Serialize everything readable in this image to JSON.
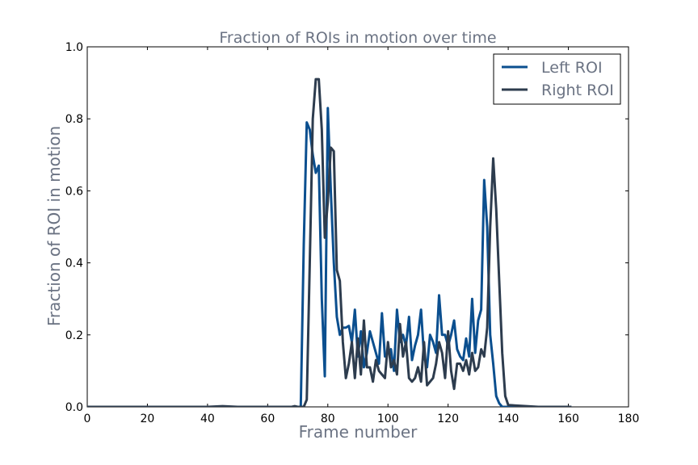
{
  "chart_data": {
    "type": "line",
    "title": "Fraction of ROIs in motion over time",
    "xlabel": "Frame number",
    "ylabel": "Fraction of ROI in motion",
    "xlim": [
      0,
      180
    ],
    "ylim": [
      0.0,
      1.0
    ],
    "xticks": [
      "0",
      "20",
      "40",
      "60",
      "80",
      "100",
      "120",
      "140",
      "160",
      "180"
    ],
    "xtick_values": [
      0,
      20,
      40,
      60,
      80,
      100,
      120,
      140,
      160,
      180
    ],
    "yticks": [
      "0.0",
      "0.2",
      "0.4",
      "0.6",
      "0.8",
      "1.0"
    ],
    "ytick_values": [
      0.0,
      0.2,
      0.4,
      0.6,
      0.8,
      1.0
    ],
    "grid": false,
    "legend_position": "top-right",
    "series": [
      {
        "name": "Left ROI",
        "color": "#0b4f8f",
        "x": [
          0,
          10,
          20,
          30,
          40,
          50,
          60,
          70,
          71,
          72,
          73,
          74,
          75,
          76,
          77,
          78,
          79,
          80,
          81,
          82,
          83,
          84,
          85,
          86,
          87,
          88,
          89,
          90,
          91,
          92,
          93,
          94,
          95,
          96,
          97,
          98,
          99,
          100,
          101,
          102,
          103,
          104,
          105,
          106,
          107,
          108,
          109,
          110,
          111,
          112,
          113,
          114,
          115,
          116,
          117,
          118,
          119,
          120,
          121,
          122,
          123,
          124,
          125,
          126,
          127,
          128,
          129,
          130,
          131,
          132,
          133,
          134,
          135,
          136,
          137,
          138,
          139,
          140,
          150,
          161
        ],
        "values": [
          0,
          0,
          0,
          0,
          0,
          0,
          0,
          0,
          0,
          0.45,
          0.79,
          0.77,
          0.7,
          0.65,
          0.67,
          0.3,
          0.085,
          0.83,
          0.6,
          0.4,
          0.25,
          0.2,
          0.22,
          0.22,
          0.225,
          0.18,
          0.27,
          0.14,
          0.21,
          0.11,
          0.15,
          0.21,
          0.18,
          0.15,
          0.12,
          0.26,
          0.14,
          0.15,
          0.16,
          0.1,
          0.27,
          0.18,
          0.2,
          0.17,
          0.25,
          0.13,
          0.17,
          0.2,
          0.27,
          0.14,
          0.11,
          0.2,
          0.18,
          0.15,
          0.31,
          0.2,
          0.2,
          0.17,
          0.2,
          0.24,
          0.16,
          0.14,
          0.13,
          0.19,
          0.14,
          0.3,
          0.15,
          0.24,
          0.27,
          0.63,
          0.5,
          0.2,
          0.12,
          0.03,
          0.01,
          0,
          0,
          0,
          0,
          0
        ]
      },
      {
        "name": "Right ROI",
        "color": "#2d3c4e",
        "x": [
          0,
          10,
          20,
          30,
          40,
          45,
          50,
          60,
          68,
          69,
          70,
          71,
          72,
          73,
          74,
          75,
          76,
          77,
          78,
          79,
          80,
          81,
          82,
          83,
          84,
          85,
          86,
          87,
          88,
          89,
          90,
          91,
          92,
          93,
          94,
          95,
          96,
          97,
          98,
          99,
          100,
          101,
          102,
          103,
          104,
          105,
          106,
          107,
          108,
          109,
          110,
          111,
          112,
          113,
          114,
          115,
          116,
          117,
          118,
          119,
          120,
          121,
          122,
          123,
          124,
          125,
          126,
          127,
          128,
          129,
          130,
          131,
          132,
          133,
          134,
          135,
          136,
          137,
          138,
          139,
          140,
          150,
          161
        ],
        "values": [
          0,
          0,
          0,
          0,
          0,
          0.002,
          0,
          0,
          0,
          0.002,
          0,
          0,
          0,
          0.02,
          0.4,
          0.8,
          0.91,
          0.91,
          0.77,
          0.47,
          0.57,
          0.72,
          0.71,
          0.38,
          0.35,
          0.18,
          0.08,
          0.12,
          0.18,
          0.08,
          0.19,
          0.09,
          0.24,
          0.11,
          0.11,
          0.07,
          0.13,
          0.1,
          0.09,
          0.08,
          0.18,
          0.11,
          0.13,
          0.09,
          0.23,
          0.14,
          0.18,
          0.08,
          0.07,
          0.08,
          0.11,
          0.07,
          0.18,
          0.06,
          0.07,
          0.08,
          0.12,
          0.18,
          0.15,
          0.08,
          0.21,
          0.1,
          0.05,
          0.12,
          0.12,
          0.1,
          0.13,
          0.09,
          0.15,
          0.1,
          0.11,
          0.16,
          0.14,
          0.22,
          0.5,
          0.69,
          0.55,
          0.35,
          0.15,
          0.03,
          0.005,
          0,
          0
        ]
      }
    ]
  }
}
